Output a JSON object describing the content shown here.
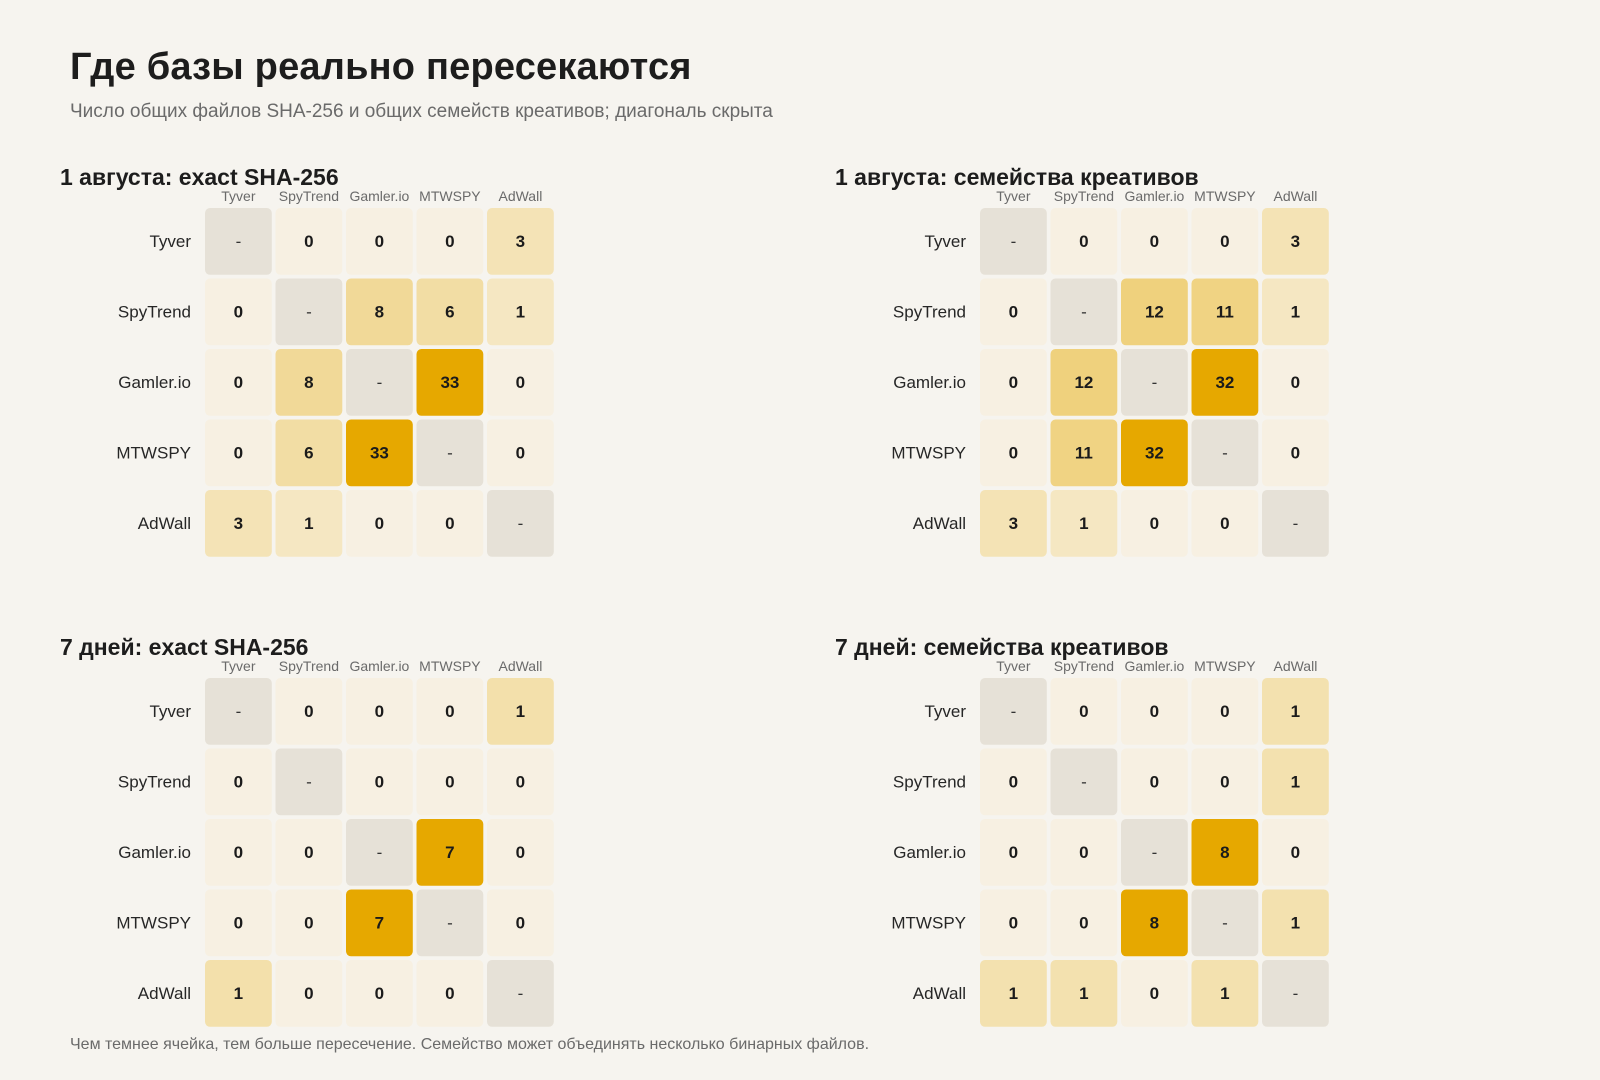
{
  "header": {
    "title": "Где базы реально пересекаются",
    "subtitle": "Число общих файлов SHA-256 и общих семейств креативов; диагональ скрыта"
  },
  "footnote": "Чем темнее ячейка, тем больше пересечение. Семейство может объединять несколько бинарных файлов.",
  "colors": {
    "background": "#f6f4ef",
    "diagonal": "#e6e1d7",
    "zero": "#f7f0e2",
    "scale_low": "#f5e9c8",
    "scale_high": "#e6a800"
  },
  "chart_data": [
    {
      "type": "heatmap",
      "title": "1 августа: exact SHA-256",
      "rows": [
        "Tyver",
        "SpyTrend",
        "Gamler.io",
        "MTWSPY",
        "AdWall"
      ],
      "columns": [
        "Tyver",
        "SpyTrend",
        "Gamler.io",
        "MTWSPY",
        "AdWall"
      ],
      "diagonal_label": "-",
      "values": [
        [
          null,
          0,
          0,
          0,
          3
        ],
        [
          0,
          null,
          8,
          6,
          1
        ],
        [
          0,
          8,
          null,
          33,
          0
        ],
        [
          0,
          6,
          33,
          null,
          0
        ],
        [
          3,
          1,
          0,
          0,
          null
        ]
      ]
    },
    {
      "type": "heatmap",
      "title": "1 августа: семейства креативов",
      "rows": [
        "Tyver",
        "SpyTrend",
        "Gamler.io",
        "MTWSPY",
        "AdWall"
      ],
      "columns": [
        "Tyver",
        "SpyTrend",
        "Gamler.io",
        "MTWSPY",
        "AdWall"
      ],
      "diagonal_label": "-",
      "values": [
        [
          null,
          0,
          0,
          0,
          3
        ],
        [
          0,
          null,
          12,
          11,
          1
        ],
        [
          0,
          12,
          null,
          32,
          0
        ],
        [
          0,
          11,
          32,
          null,
          0
        ],
        [
          3,
          1,
          0,
          0,
          null
        ]
      ]
    },
    {
      "type": "heatmap",
      "title": "7 дней: exact SHA-256",
      "rows": [
        "Tyver",
        "SpyTrend",
        "Gamler.io",
        "MTWSPY",
        "AdWall"
      ],
      "columns": [
        "Tyver",
        "SpyTrend",
        "Gamler.io",
        "MTWSPY",
        "AdWall"
      ],
      "diagonal_label": "-",
      "values": [
        [
          null,
          0,
          0,
          0,
          1
        ],
        [
          0,
          null,
          0,
          0,
          0
        ],
        [
          0,
          0,
          null,
          7,
          0
        ],
        [
          0,
          0,
          7,
          null,
          0
        ],
        [
          1,
          0,
          0,
          0,
          null
        ]
      ]
    },
    {
      "type": "heatmap",
      "title": "7 дней: семейства креативов",
      "rows": [
        "Tyver",
        "SpyTrend",
        "Gamler.io",
        "MTWSPY",
        "AdWall"
      ],
      "columns": [
        "Tyver",
        "SpyTrend",
        "Gamler.io",
        "MTWSPY",
        "AdWall"
      ],
      "diagonal_label": "-",
      "values": [
        [
          null,
          0,
          0,
          0,
          1
        ],
        [
          0,
          null,
          0,
          0,
          1
        ],
        [
          0,
          0,
          null,
          8,
          0
        ],
        [
          0,
          0,
          8,
          null,
          1
        ],
        [
          1,
          1,
          0,
          1,
          null
        ]
      ]
    }
  ]
}
